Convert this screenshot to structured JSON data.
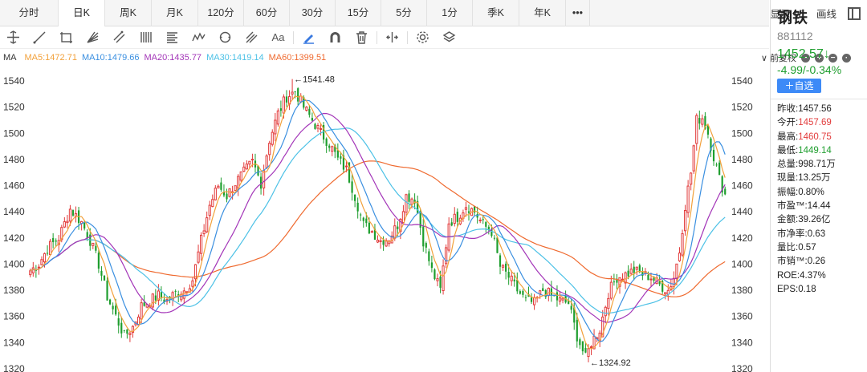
{
  "period_tabs": [
    {
      "label": "分时",
      "name": "tab-intraday",
      "w": 0
    },
    {
      "label": "日K",
      "name": "tab-daily-k"
    },
    {
      "label": "周K",
      "name": "tab-weekly-k"
    },
    {
      "label": "月K",
      "name": "tab-monthly-k"
    },
    {
      "label": "120分",
      "name": "tab-120min"
    },
    {
      "label": "60分",
      "name": "tab-60min"
    },
    {
      "label": "30分",
      "name": "tab-30min"
    },
    {
      "label": "15分",
      "name": "tab-15min"
    },
    {
      "label": "5分",
      "name": "tab-5min"
    },
    {
      "label": "1分",
      "name": "tab-1min"
    },
    {
      "label": "季K",
      "name": "tab-quarterly-k"
    },
    {
      "label": "年K",
      "name": "tab-yearly-k"
    },
    {
      "label": "•••",
      "name": "tab-more"
    }
  ],
  "active_tab": "日K",
  "period_right": {
    "display": "显示 ∨",
    "draw": "画线"
  },
  "tools": [
    "crosshair-icon",
    "line-icon",
    "rectangle-icon",
    "fan-icon",
    "channel-icon",
    "fib-lines-icon",
    "text-list-icon",
    "wave-icon",
    "cycle-icon",
    "pitchfork-icon",
    "text-icon",
    "brush-icon",
    "magnet-icon",
    "trash-icon",
    "scale-icon",
    "settings-icon",
    "layers-icon"
  ],
  "tool_labels": {
    "text-icon": "Aa"
  },
  "ma": {
    "label": "MA",
    "ma5": "MA5:1472.71",
    "ma10": "MA10:1479.66",
    "ma20": "MA20:1435.77",
    "ma30": "MA30:1419.14",
    "ma60": "MA60:1399.51",
    "adjust": "∨ 前复权"
  },
  "colors": {
    "up": "#e23b3b",
    "down": "#1e9e2e",
    "ma5": "#f2a13b",
    "ma10": "#3a8fe0",
    "ma20": "#a335b8",
    "ma30": "#4cc1e6",
    "ma60": "#ef6a2f",
    "ma_label": "#333333"
  },
  "stock": {
    "name": "钢铁",
    "code": "881112",
    "price": "1452.57↓",
    "change": "-4.99/-0.34%",
    "add_label": "＋自选"
  },
  "stats": [
    {
      "label": "昨收:",
      "value": "1457.56",
      "cls": ""
    },
    {
      "label": "今开:",
      "value": "1457.69",
      "cls": "v-red"
    },
    {
      "label": "最高:",
      "value": "1460.75",
      "cls": "v-red"
    },
    {
      "label": "最低:",
      "value": "1449.14",
      "cls": "v-green"
    },
    {
      "label": "总量:",
      "value": "998.71万",
      "cls": ""
    },
    {
      "label": "现量:",
      "value": "13.25万",
      "cls": ""
    },
    {
      "label": "振幅:",
      "value": "0.80%",
      "cls": ""
    },
    {
      "label": "市盈™:",
      "value": "14.44",
      "cls": ""
    },
    {
      "label": "金额:",
      "value": "39.26亿",
      "cls": ""
    },
    {
      "label": "市净率:",
      "value": "0.63",
      "cls": ""
    },
    {
      "label": "量比:",
      "value": "0.57",
      "cls": ""
    },
    {
      "label": "市销™:",
      "value": "0.26",
      "cls": ""
    },
    {
      "label": "ROE:",
      "value": "4.37%",
      "cls": ""
    },
    {
      "label": "EPS:",
      "value": "0.18",
      "cls": ""
    }
  ],
  "chart_data": {
    "type": "candlestick",
    "y_ticks": [
      1540,
      1520,
      1500,
      1480,
      1460,
      1440,
      1420,
      1400,
      1380,
      1360,
      1340,
      1320
    ],
    "ylim": [
      1318,
      1548
    ],
    "annotations": [
      {
        "text": "←1541.48",
        "value": 1541.48,
        "at": "high"
      },
      {
        "text": "←1324.92",
        "value": 1324.92,
        "at": "low"
      }
    ],
    "anchors": [
      [
        0,
        1395
      ],
      [
        3,
        1400
      ],
      [
        6,
        1412
      ],
      [
        10,
        1420
      ],
      [
        14,
        1442
      ],
      [
        18,
        1432
      ],
      [
        21,
        1418
      ],
      [
        24,
        1400
      ],
      [
        27,
        1375
      ],
      [
        30,
        1360
      ],
      [
        33,
        1345
      ],
      [
        36,
        1352
      ],
      [
        39,
        1368
      ],
      [
        42,
        1372
      ],
      [
        45,
        1376
      ],
      [
        48,
        1372
      ],
      [
        51,
        1378
      ],
      [
        54,
        1380
      ],
      [
        57,
        1388
      ],
      [
        60,
        1418
      ],
      [
        63,
        1445
      ],
      [
        66,
        1460
      ],
      [
        69,
        1452
      ],
      [
        72,
        1462
      ],
      [
        75,
        1470
      ],
      [
        78,
        1478
      ],
      [
        81,
        1462
      ],
      [
        84,
        1495
      ],
      [
        87,
        1515
      ],
      [
        90,
        1528
      ],
      [
        93,
        1532
      ],
      [
        96,
        1520
      ],
      [
        99,
        1510
      ],
      [
        102,
        1500
      ],
      [
        105,
        1492
      ],
      [
        108,
        1480
      ],
      [
        111,
        1472
      ],
      [
        114,
        1452
      ],
      [
        117,
        1430
      ],
      [
        120,
        1425
      ],
      [
        123,
        1418
      ],
      [
        126,
        1420
      ],
      [
        129,
        1430
      ],
      [
        132,
        1452
      ],
      [
        135,
        1450
      ],
      [
        138,
        1418
      ],
      [
        141,
        1395
      ],
      [
        144,
        1380
      ],
      [
        147,
        1432
      ],
      [
        150,
        1436
      ],
      [
        153,
        1445
      ],
      [
        156,
        1440
      ],
      [
        159,
        1430
      ],
      [
        162,
        1425
      ],
      [
        165,
        1398
      ],
      [
        168,
        1390
      ],
      [
        171,
        1380
      ],
      [
        174,
        1372
      ],
      [
        177,
        1370
      ],
      [
        180,
        1380
      ],
      [
        183,
        1376
      ],
      [
        186,
        1372
      ],
      [
        189,
        1370
      ],
      [
        192,
        1345
      ],
      [
        195,
        1328
      ],
      [
        197,
        1340
      ],
      [
        200,
        1350
      ],
      [
        203,
        1378
      ],
      [
        206,
        1390
      ],
      [
        209,
        1392
      ],
      [
        212,
        1395
      ],
      [
        215,
        1392
      ],
      [
        218,
        1390
      ],
      [
        221,
        1384
      ],
      [
        224,
        1380
      ],
      [
        226,
        1390
      ],
      [
        228,
        1410
      ],
      [
        230,
        1445
      ],
      [
        232,
        1470
      ],
      [
        234,
        1510
      ],
      [
        236,
        1512
      ],
      [
        238,
        1500
      ],
      [
        240,
        1482
      ],
      [
        242,
        1465
      ],
      [
        244,
        1453
      ]
    ]
  }
}
